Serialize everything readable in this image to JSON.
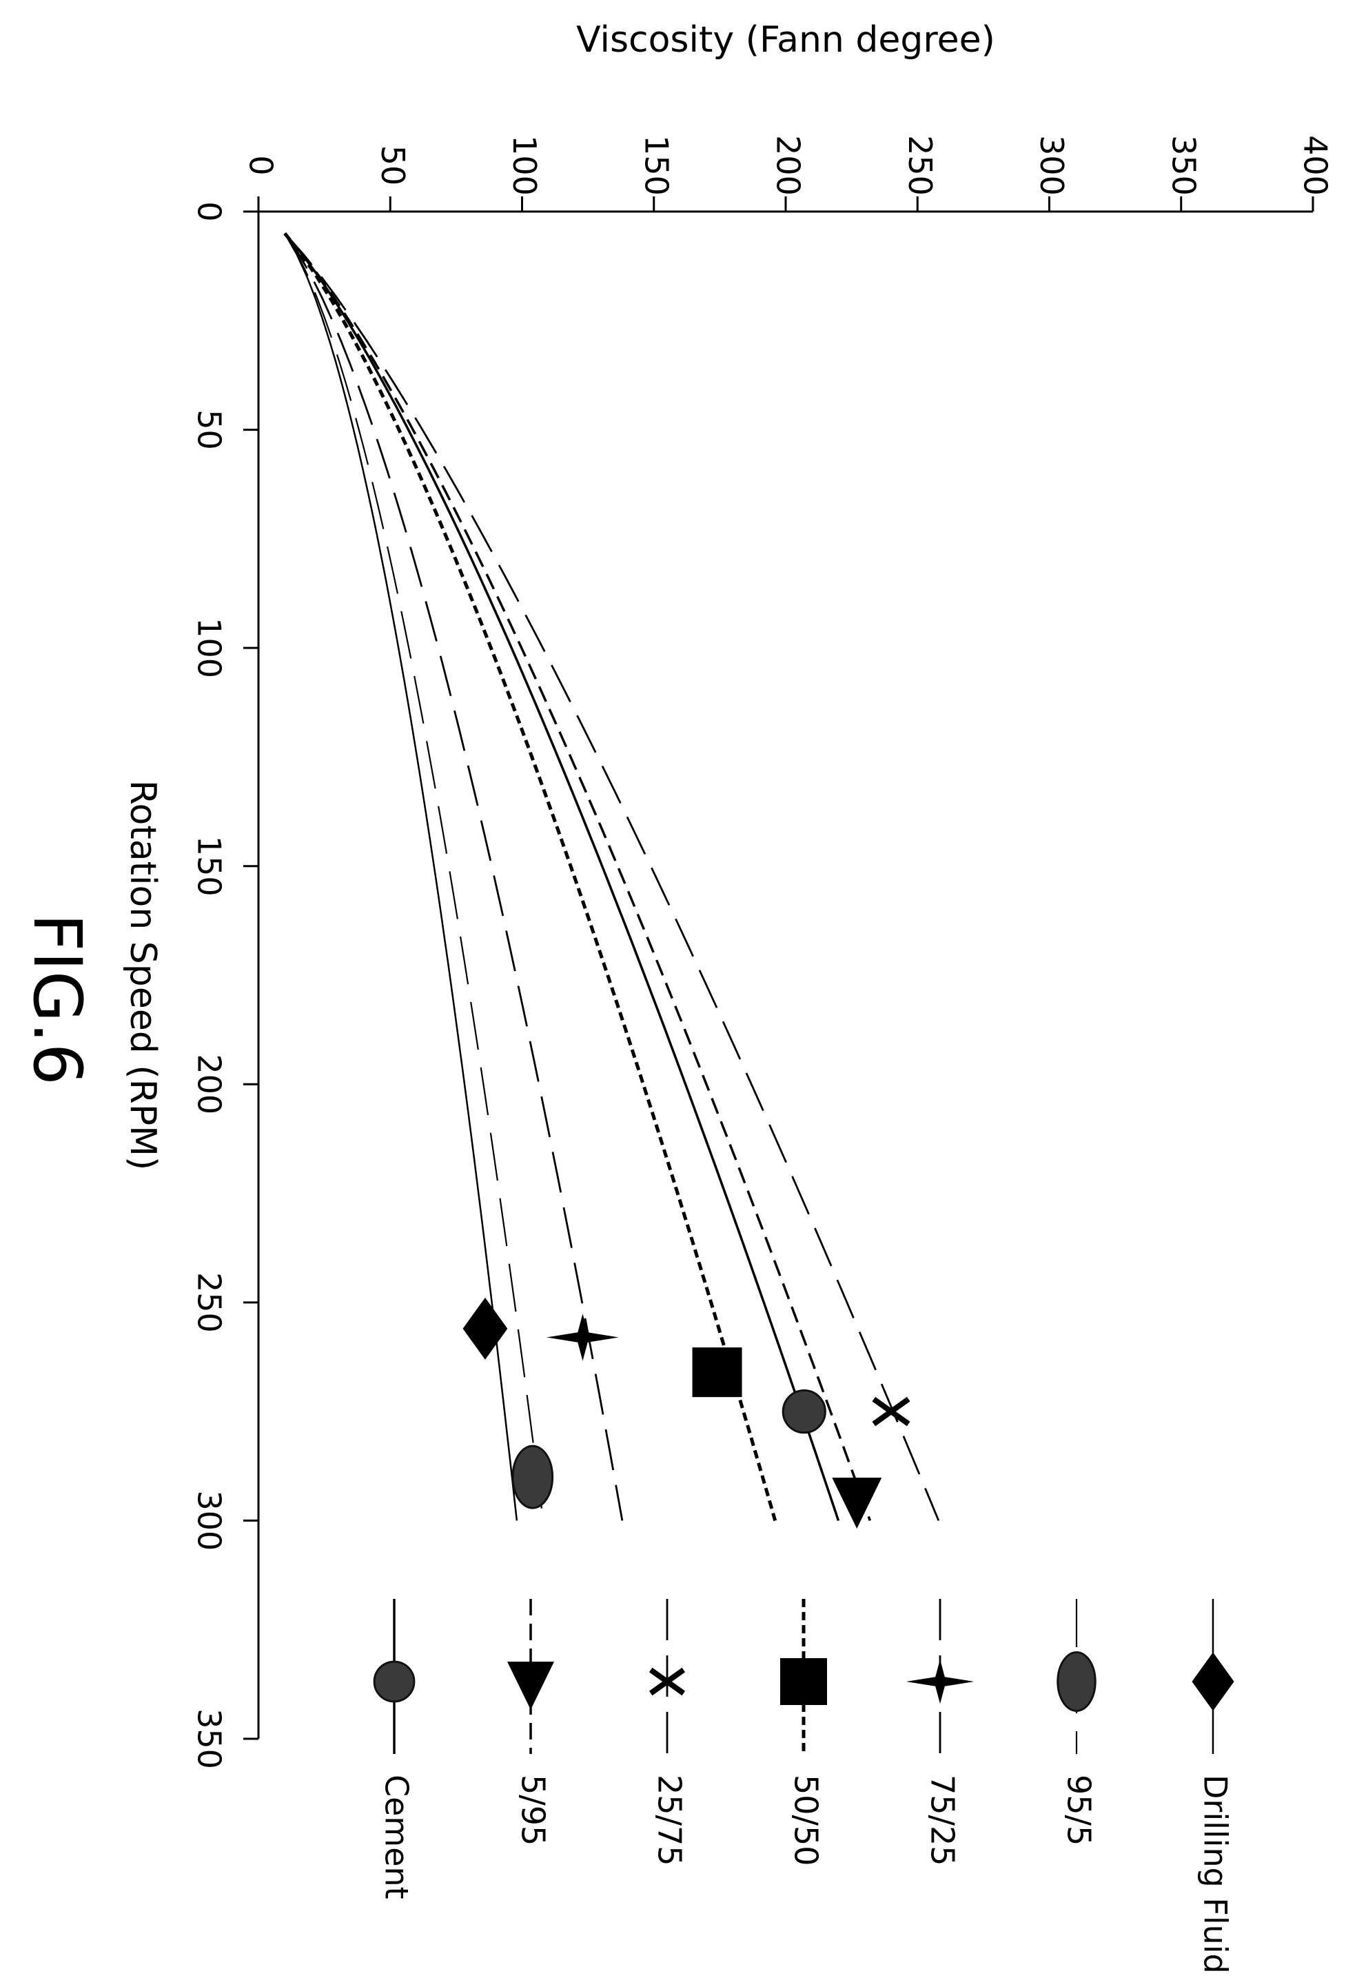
{
  "figure_label": "FIG.6",
  "chart_data": {
    "type": "line",
    "orientation": "rotated 90 degrees clockwise",
    "xlabel": "Rotation Speed (RPM)",
    "ylabel": "Viscosity (Fann degree)",
    "xlim": [
      0,
      350
    ],
    "ylim": [
      0,
      400
    ],
    "xticks": [
      "0",
      "50",
      "100",
      "150",
      "200",
      "250",
      "300",
      "350"
    ],
    "yticks": [
      "0",
      "50",
      "100",
      "150",
      "200",
      "250",
      "300",
      "350",
      "400"
    ],
    "grid": false,
    "legend_placement": "right",
    "series": [
      {
        "name": "Drilling Fluid",
        "marker": "diamond",
        "line": "solid-thin",
        "start": 10,
        "end": 98,
        "marker_x": 256,
        "marker_y": 86
      },
      {
        "name": "95/5",
        "marker": "ellipse",
        "line": "long-dash-thin",
        "start": 10,
        "end": 108,
        "marker_x": 290,
        "marker_y": 104
      },
      {
        "name": "75/25",
        "marker": "star",
        "line": "long-dash",
        "start": 10,
        "end": 138,
        "marker_x": 258,
        "marker_y": 123
      },
      {
        "name": "50/50",
        "marker": "square",
        "line": "dotted-heavy",
        "start": 10,
        "end": 196,
        "marker_x": 266,
        "marker_y": 174
      },
      {
        "name": "25/75",
        "marker": "x",
        "line": "long-dash",
        "start": 10,
        "end": 258,
        "marker_x": 275,
        "marker_y": 240
      },
      {
        "name": "5/95",
        "marker": "triangle",
        "line": "short-dash",
        "start": 10,
        "end": 232,
        "marker_x": 295,
        "marker_y": 227
      },
      {
        "name": "Cement",
        "marker": "circle",
        "line": "solid",
        "start": 10,
        "end": 220,
        "marker_x": 275,
        "marker_y": 207
      }
    ]
  }
}
